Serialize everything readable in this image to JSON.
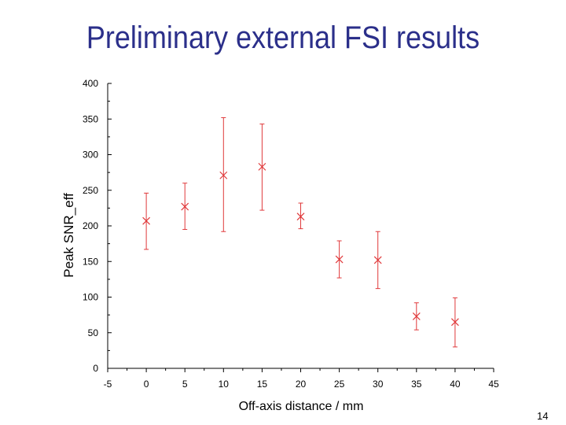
{
  "slide": {
    "title": "Preliminary external FSI results",
    "page_number": "14"
  },
  "chart_data": {
    "type": "scatter",
    "title": "",
    "xlabel": "Off-axis distance / mm",
    "ylabel": "Peak SNR_eff",
    "xlim": [
      -5,
      45
    ],
    "ylim": [
      0,
      400
    ],
    "xticks": [
      -5,
      0,
      5,
      10,
      15,
      20,
      25,
      30,
      35,
      40,
      45
    ],
    "yticks": [
      0,
      50,
      100,
      150,
      200,
      250,
      300,
      350,
      400
    ],
    "grid": false,
    "marker": "x",
    "color": "#e0393b",
    "points": [
      {
        "x": 0,
        "y": 207,
        "err_low": 167,
        "err_high": 246
      },
      {
        "x": 5,
        "y": 227,
        "err_low": 195,
        "err_high": 260
      },
      {
        "x": 10,
        "y": 271,
        "err_low": 192,
        "err_high": 352
      },
      {
        "x": 15,
        "y": 283,
        "err_low": 222,
        "err_high": 343
      },
      {
        "x": 20,
        "y": 213,
        "err_low": 196,
        "err_high": 232
      },
      {
        "x": 25,
        "y": 153,
        "err_low": 127,
        "err_high": 179
      },
      {
        "x": 30,
        "y": 152,
        "err_low": 112,
        "err_high": 192
      },
      {
        "x": 35,
        "y": 73,
        "err_low": 54,
        "err_high": 92
      },
      {
        "x": 40,
        "y": 65,
        "err_low": 30,
        "err_high": 99
      }
    ]
  }
}
